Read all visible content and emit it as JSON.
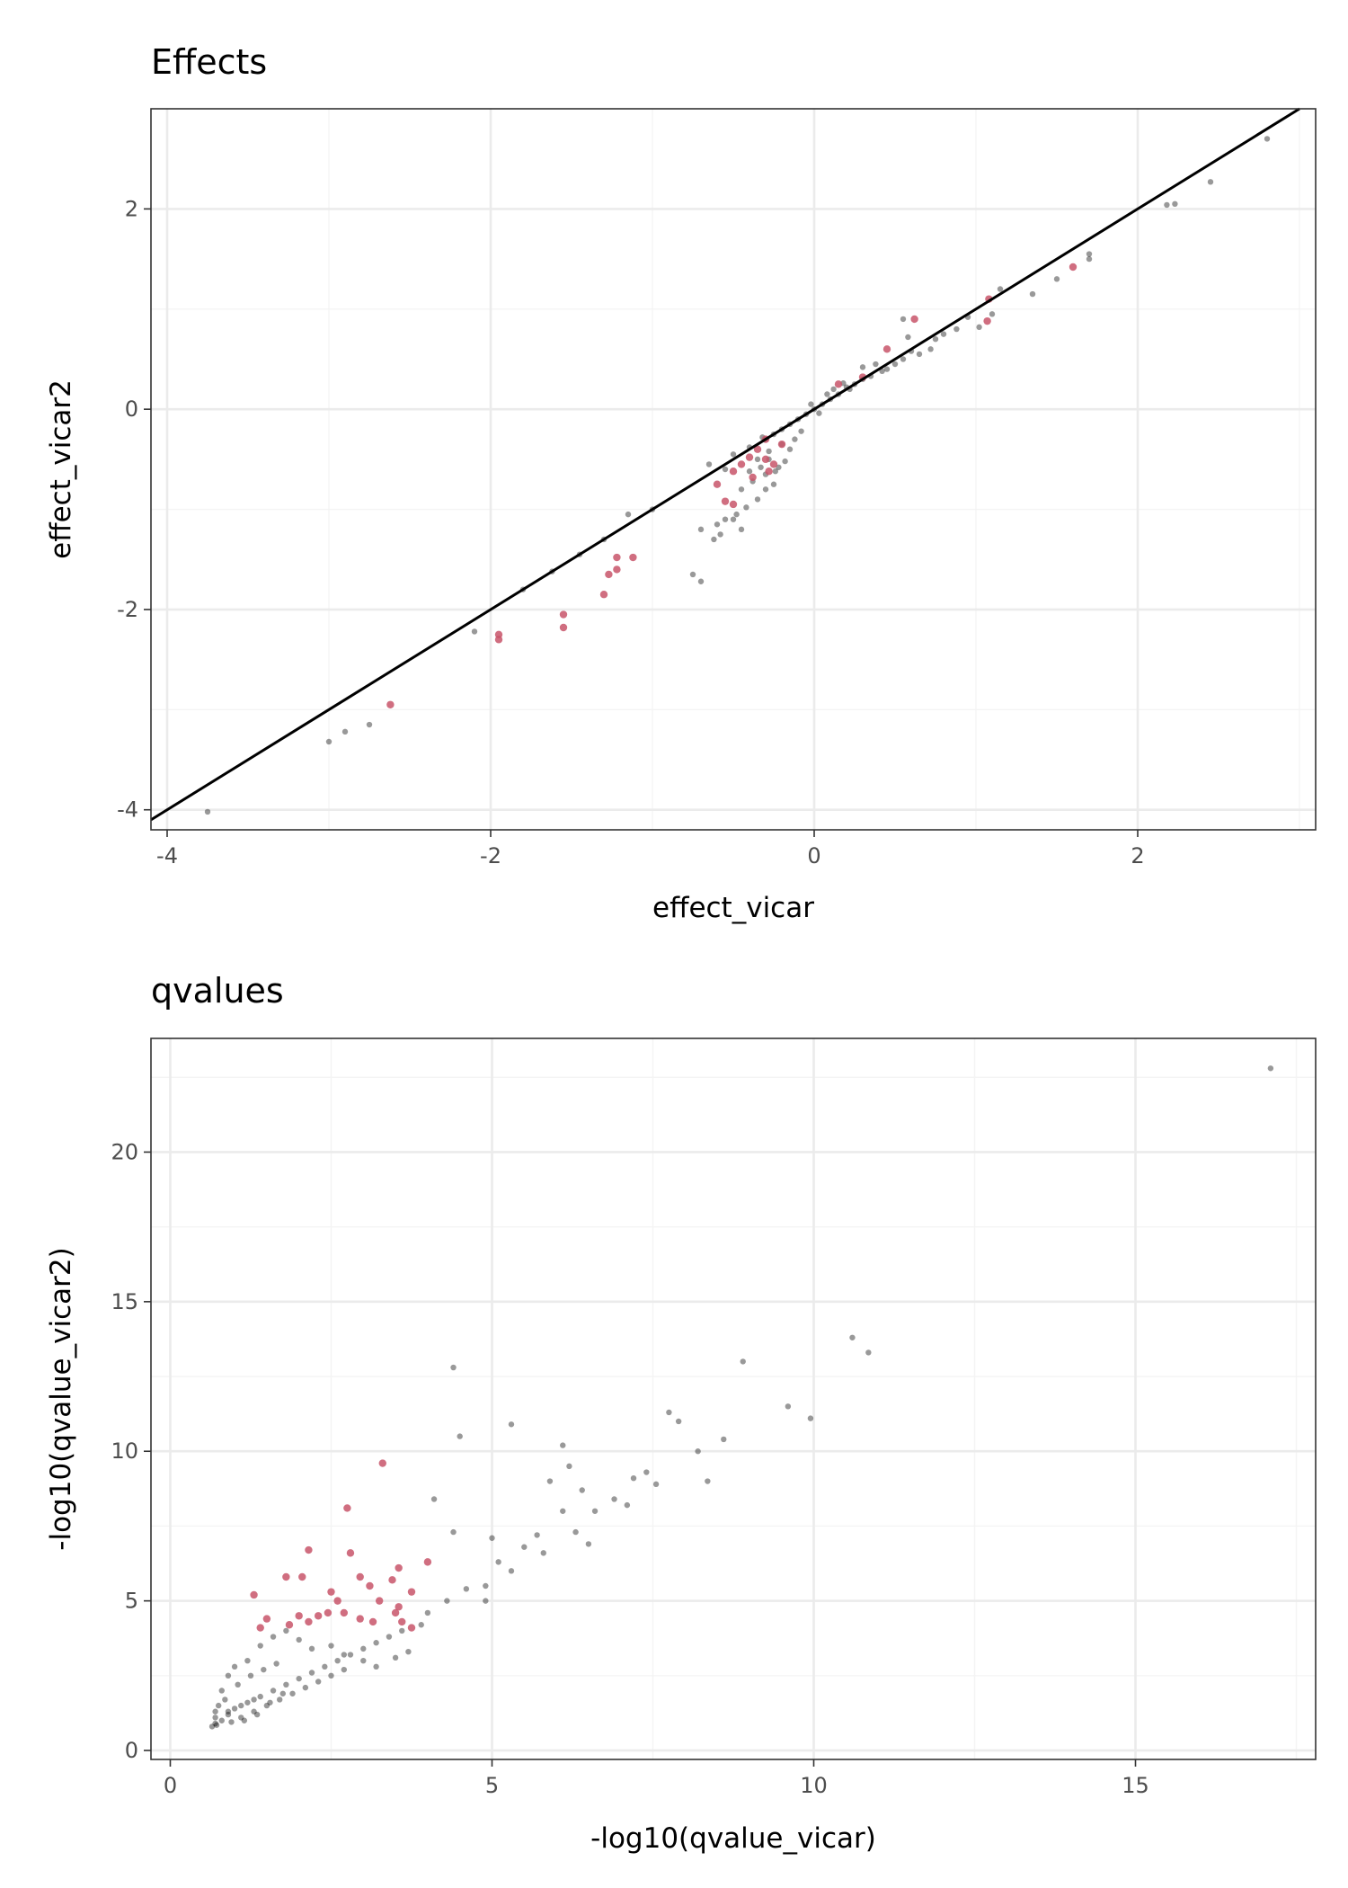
{
  "colors": {
    "background": "#ffffff",
    "panel_border": "#333333",
    "grid_major": "#ebebeb",
    "grid_minor": "#f4f4f4",
    "tick_text": "#4d4d4d",
    "point_default": "#000000",
    "point_highlight": "#c8556a",
    "reference_line": "#000000"
  },
  "chart_data": [
    {
      "type": "scatter",
      "title": "Effects",
      "xlabel": "effect_vicar",
      "ylabel": "effect_vicar2",
      "xlim": [
        -4.1,
        3.1
      ],
      "ylim": [
        -4.2,
        3.0
      ],
      "xticks": [
        -4,
        -2,
        0,
        2
      ],
      "xtick_labels": [
        "-4",
        "-2",
        "0",
        "2"
      ],
      "yticks": [
        -4,
        -2,
        0,
        2
      ],
      "ytick_labels": [
        "-4",
        "-2",
        "0",
        "2"
      ],
      "grid": true,
      "legend": "none",
      "reference_line": {
        "slope": 1,
        "intercept": 0
      },
      "series": [
        {
          "group": "default",
          "color": "#000000",
          "points": [
            [
              2.8,
              2.7
            ],
            [
              2.45,
              2.27
            ],
            [
              2.23,
              2.05
            ],
            [
              2.18,
              2.04
            ],
            [
              1.7,
              1.55
            ],
            [
              1.7,
              1.5
            ],
            [
              1.5,
              1.3
            ],
            [
              1.35,
              1.15
            ],
            [
              1.15,
              1.2
            ],
            [
              1.1,
              0.95
            ],
            [
              1.02,
              0.82
            ],
            [
              0.95,
              0.92
            ],
            [
              0.88,
              0.8
            ],
            [
              0.8,
              0.75
            ],
            [
              0.72,
              0.6
            ],
            [
              0.65,
              0.55
            ],
            [
              0.55,
              0.5
            ],
            [
              0.55,
              0.9
            ],
            [
              0.58,
              0.72
            ],
            [
              0.5,
              0.45
            ],
            [
              0.42,
              0.38
            ],
            [
              0.35,
              0.33
            ],
            [
              0.3,
              0.3
            ],
            [
              0.25,
              0.25
            ],
            [
              0.2,
              0.22
            ],
            [
              0.15,
              0.15
            ],
            [
              0.1,
              0.1
            ],
            [
              0.05,
              0.05
            ],
            [
              0.0,
              0.0
            ],
            [
              -0.05,
              -0.05
            ],
            [
              -0.1,
              -0.1
            ],
            [
              -0.15,
              -0.15
            ],
            [
              -0.2,
              -0.2
            ],
            [
              -0.25,
              -0.25
            ],
            [
              -0.3,
              -0.3
            ],
            [
              -0.08,
              -0.22
            ],
            [
              -0.12,
              -0.3
            ],
            [
              -0.2,
              -0.35
            ],
            [
              -0.28,
              -0.42
            ],
            [
              -0.35,
              -0.5
            ],
            [
              0.08,
              0.15
            ],
            [
              0.12,
              0.2
            ],
            [
              0.18,
              0.26
            ],
            [
              0.22,
              0.2
            ],
            [
              -0.02,
              0.05
            ],
            [
              0.03,
              -0.04
            ],
            [
              -0.18,
              -0.52
            ],
            [
              -0.22,
              -0.58
            ],
            [
              -0.3,
              -0.65
            ],
            [
              -0.38,
              -0.72
            ],
            [
              -0.45,
              -0.8
            ],
            [
              -0.25,
              -0.75
            ],
            [
              -0.3,
              -0.8
            ],
            [
              -0.35,
              -0.9
            ],
            [
              -0.42,
              -0.98
            ],
            [
              -0.48,
              -1.05
            ],
            [
              -0.55,
              -1.1
            ],
            [
              -0.6,
              -1.15
            ],
            [
              -0.62,
              -1.3
            ],
            [
              -0.58,
              -1.25
            ],
            [
              -0.7,
              -1.2
            ],
            [
              -0.45,
              -1.2
            ],
            [
              -0.5,
              -1.1
            ],
            [
              -0.75,
              -1.65
            ],
            [
              -0.7,
              -1.72
            ],
            [
              -1.0,
              -1.0
            ],
            [
              -1.15,
              -1.05
            ],
            [
              -1.3,
              -1.3
            ],
            [
              -1.45,
              -1.45
            ],
            [
              -1.62,
              -1.62
            ],
            [
              -1.8,
              -1.8
            ],
            [
              -2.1,
              -2.22
            ],
            [
              -2.75,
              -3.15
            ],
            [
              -2.9,
              -3.22
            ],
            [
              -3.0,
              -3.32
            ],
            [
              -3.75,
              -4.02
            ],
            [
              -0.65,
              -0.55
            ],
            [
              -0.55,
              -0.6
            ],
            [
              -0.5,
              -0.45
            ],
            [
              -0.4,
              -0.38
            ],
            [
              -0.32,
              -0.28
            ],
            [
              -0.28,
              -0.5
            ],
            [
              -0.24,
              -0.62
            ],
            [
              -0.33,
              -0.58
            ],
            [
              -0.4,
              -0.62
            ],
            [
              -0.15,
              -0.4
            ],
            [
              0.3,
              0.42
            ],
            [
              0.38,
              0.45
            ],
            [
              0.45,
              0.4
            ],
            [
              0.6,
              0.58
            ],
            [
              0.75,
              0.7
            ]
          ]
        },
        {
          "group": "highlight",
          "color": "#c8556a",
          "points": [
            [
              1.6,
              1.42
            ],
            [
              1.08,
              1.1
            ],
            [
              1.07,
              0.88
            ],
            [
              0.62,
              0.9
            ],
            [
              0.45,
              0.6
            ],
            [
              0.3,
              0.32
            ],
            [
              0.15,
              0.25
            ],
            [
              -0.3,
              -0.3
            ],
            [
              -0.35,
              -0.4
            ],
            [
              -0.3,
              -0.5
            ],
            [
              -0.25,
              -0.55
            ],
            [
              -0.4,
              -0.48
            ],
            [
              -0.45,
              -0.55
            ],
            [
              -0.5,
              -0.62
            ],
            [
              -0.6,
              -0.75
            ],
            [
              -0.55,
              -0.92
            ],
            [
              -0.5,
              -0.95
            ],
            [
              -0.2,
              -0.35
            ],
            [
              -0.28,
              -0.62
            ],
            [
              -0.38,
              -0.68
            ],
            [
              -1.22,
              -1.48
            ],
            [
              -1.22,
              -1.6
            ],
            [
              -1.27,
              -1.65
            ],
            [
              -1.12,
              -1.48
            ],
            [
              -1.3,
              -1.85
            ],
            [
              -1.55,
              -2.05
            ],
            [
              -1.55,
              -2.18
            ],
            [
              -1.95,
              -2.25
            ],
            [
              -1.95,
              -2.3
            ],
            [
              -2.62,
              -2.95
            ]
          ]
        }
      ]
    },
    {
      "type": "scatter",
      "title": "qvalues",
      "xlabel": "-log10(qvalue_vicar)",
      "ylabel": "-log10(qvalue_vicar2)",
      "xlim": [
        -0.3,
        17.8
      ],
      "ylim": [
        -0.3,
        23.8
      ],
      "xticks": [
        0,
        5,
        10,
        15
      ],
      "xtick_labels": [
        "0",
        "5",
        "10",
        "15"
      ],
      "yticks": [
        0,
        5,
        10,
        15,
        20
      ],
      "ytick_labels": [
        "0",
        "5",
        "10",
        "15",
        "20"
      ],
      "grid": true,
      "legend": "none",
      "series": [
        {
          "group": "default",
          "color": "#000000",
          "points": [
            [
              17.1,
              22.8
            ],
            [
              10.6,
              13.8
            ],
            [
              10.85,
              13.3
            ],
            [
              8.9,
              13.0
            ],
            [
              9.6,
              11.5
            ],
            [
              9.95,
              11.1
            ],
            [
              7.75,
              11.3
            ],
            [
              7.9,
              11.0
            ],
            [
              8.6,
              10.4
            ],
            [
              8.2,
              10.0
            ],
            [
              8.35,
              9.0
            ],
            [
              7.4,
              9.3
            ],
            [
              7.55,
              8.9
            ],
            [
              7.2,
              9.1
            ],
            [
              6.9,
              8.4
            ],
            [
              7.1,
              8.2
            ],
            [
              6.6,
              8.0
            ],
            [
              6.4,
              8.7
            ],
            [
              6.2,
              9.5
            ],
            [
              5.9,
              9.0
            ],
            [
              6.1,
              8.0
            ],
            [
              6.3,
              7.3
            ],
            [
              5.7,
              7.2
            ],
            [
              6.1,
              10.2
            ],
            [
              5.3,
              10.9
            ],
            [
              4.4,
              12.8
            ],
            [
              4.5,
              10.5
            ],
            [
              4.1,
              8.4
            ],
            [
              4.4,
              7.3
            ],
            [
              5.0,
              7.1
            ],
            [
              5.1,
              6.3
            ],
            [
              5.5,
              6.8
            ],
            [
              5.8,
              6.6
            ],
            [
              6.5,
              6.9
            ],
            [
              5.3,
              6.0
            ],
            [
              4.9,
              5.5
            ],
            [
              4.9,
              5.0
            ],
            [
              4.6,
              5.4
            ],
            [
              4.3,
              5.0
            ],
            [
              4.0,
              4.6
            ],
            [
              3.9,
              4.2
            ],
            [
              3.6,
              4.0
            ],
            [
              3.4,
              3.8
            ],
            [
              3.2,
              3.6
            ],
            [
              3.0,
              3.4
            ],
            [
              2.8,
              3.2
            ],
            [
              2.6,
              3.0
            ],
            [
              2.4,
              2.8
            ],
            [
              2.2,
              2.6
            ],
            [
              2.0,
              2.4
            ],
            [
              1.8,
              2.2
            ],
            [
              1.6,
              2.0
            ],
            [
              1.4,
              1.8
            ],
            [
              1.2,
              1.6
            ],
            [
              1.0,
              1.4
            ],
            [
              0.9,
              1.2
            ],
            [
              0.8,
              1.0
            ],
            [
              0.7,
              0.9
            ],
            [
              0.65,
              0.8
            ],
            [
              0.7,
              1.1
            ],
            [
              0.75,
              1.5
            ],
            [
              0.8,
              2.0
            ],
            [
              0.9,
              2.5
            ],
            [
              1.0,
              2.8
            ],
            [
              1.2,
              3.0
            ],
            [
              1.4,
              3.5
            ],
            [
              1.6,
              3.8
            ],
            [
              1.8,
              4.0
            ],
            [
              2.0,
              3.7
            ],
            [
              2.2,
              3.4
            ],
            [
              2.5,
              3.5
            ],
            [
              2.7,
              3.2
            ],
            [
              3.0,
              3.0
            ],
            [
              3.2,
              2.8
            ],
            [
              3.5,
              3.1
            ],
            [
              3.7,
              3.3
            ],
            [
              1.1,
              1.1
            ],
            [
              1.3,
              1.3
            ],
            [
              1.5,
              1.5
            ],
            [
              1.7,
              1.7
            ],
            [
              1.9,
              1.9
            ],
            [
              2.1,
              2.1
            ],
            [
              2.3,
              2.3
            ],
            [
              2.5,
              2.5
            ],
            [
              2.7,
              2.7
            ],
            [
              0.85,
              1.7
            ],
            [
              1.05,
              2.2
            ],
            [
              1.25,
              2.5
            ],
            [
              1.45,
              2.7
            ],
            [
              1.65,
              2.9
            ],
            [
              0.95,
              0.95
            ],
            [
              1.15,
              1.0
            ],
            [
              1.35,
              1.2
            ],
            [
              0.7,
              1.3
            ],
            [
              0.72,
              0.85
            ],
            [
              0.9,
              1.3
            ],
            [
              1.1,
              1.5
            ],
            [
              1.3,
              1.7
            ],
            [
              1.55,
              1.6
            ],
            [
              1.75,
              1.9
            ]
          ]
        },
        {
          "group": "highlight",
          "color": "#c8556a",
          "points": [
            [
              3.3,
              9.6
            ],
            [
              2.75,
              8.1
            ],
            [
              2.15,
              6.7
            ],
            [
              2.8,
              6.6
            ],
            [
              4.0,
              6.3
            ],
            [
              3.55,
              6.1
            ],
            [
              1.8,
              5.8
            ],
            [
              2.05,
              5.8
            ],
            [
              2.95,
              5.8
            ],
            [
              3.45,
              5.7
            ],
            [
              3.1,
              5.5
            ],
            [
              1.3,
              5.2
            ],
            [
              2.5,
              5.3
            ],
            [
              3.75,
              5.3
            ],
            [
              2.6,
              5.0
            ],
            [
              3.25,
              5.0
            ],
            [
              3.55,
              4.8
            ],
            [
              2.7,
              4.6
            ],
            [
              2.3,
              4.5
            ],
            [
              2.0,
              4.5
            ],
            [
              1.5,
              4.4
            ],
            [
              1.85,
              4.2
            ],
            [
              2.15,
              4.3
            ],
            [
              2.45,
              4.6
            ],
            [
              2.95,
              4.4
            ],
            [
              3.15,
              4.3
            ],
            [
              3.6,
              4.3
            ],
            [
              3.75,
              4.1
            ],
            [
              3.5,
              4.6
            ],
            [
              1.4,
              4.1
            ]
          ]
        }
      ]
    }
  ]
}
